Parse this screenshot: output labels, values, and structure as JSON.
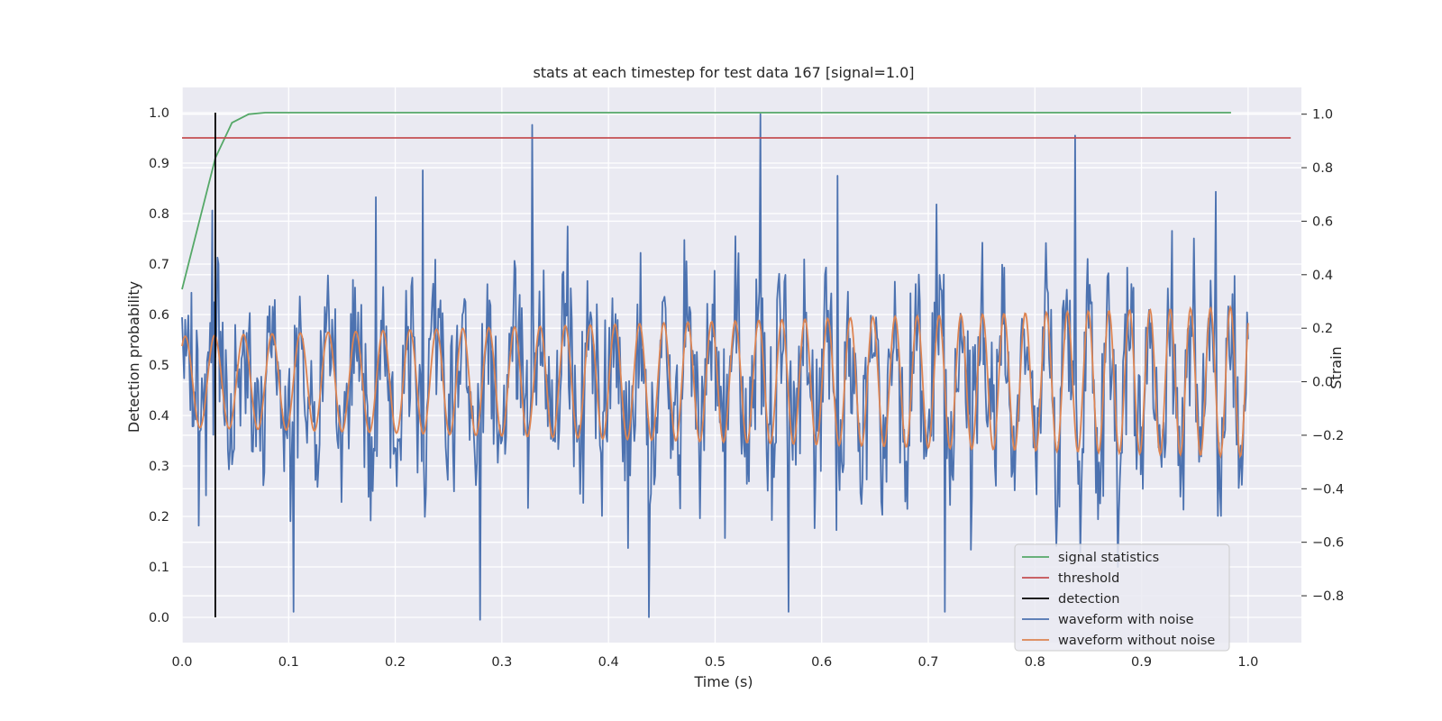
{
  "chart_data": {
    "type": "line",
    "title": "stats at each timestep for test data 167 [signal=1.0]",
    "xlabel": "Time (s)",
    "ylabel_left": "Detection probability",
    "ylabel_right": "Strain",
    "xlim": [
      0.0,
      1.05
    ],
    "ylim_left": [
      -0.05,
      1.05
    ],
    "ylim_right": [
      -0.975,
      1.1
    ],
    "x_ticks": [
      "0.0",
      "0.1",
      "0.2",
      "0.3",
      "0.4",
      "0.5",
      "0.6",
      "0.7",
      "0.8",
      "0.9",
      "1.0"
    ],
    "y_left_ticks": [
      "0.0",
      "0.1",
      "0.2",
      "0.3",
      "0.4",
      "0.5",
      "0.6",
      "0.7",
      "0.8",
      "0.9",
      "1.0"
    ],
    "y_right_ticks": [
      "−0.8",
      "−0.6",
      "−0.4",
      "−0.2",
      "0.0",
      "0.2",
      "0.4",
      "0.6",
      "0.8",
      "1.0"
    ],
    "grid": true,
    "legend_position": "lower-right",
    "colors": {
      "signal_statistics": "#55a868",
      "threshold": "#c44e52",
      "detection": "#000000",
      "waveform_noise": "#4c72b0",
      "waveform_clean": "#dd8452",
      "background": "#eaeaf2",
      "grid": "#ffffff"
    },
    "series": [
      {
        "name": "signal statistics",
        "axis": "left",
        "x": [
          0.0,
          0.0156,
          0.0312,
          0.0468,
          0.0625,
          0.0781,
          0.1,
          0.3,
          0.5,
          0.7,
          0.9,
          0.984
        ],
        "y": [
          0.65,
          0.78,
          0.91,
          0.98,
          0.997,
          1.0,
          1.0,
          1.0,
          1.0,
          1.0,
          1.0,
          1.0
        ]
      },
      {
        "name": "threshold",
        "axis": "left",
        "x": [
          0.0,
          1.04
        ],
        "y": [
          0.95,
          0.95
        ]
      },
      {
        "name": "detection",
        "axis": "left",
        "x": [
          0.0312,
          0.0312
        ],
        "y": [
          0.0,
          1.0
        ]
      },
      {
        "name": "waveform with noise",
        "axis": "right",
        "x_range": [
          0.0,
          1.0
        ],
        "peaks": [
          {
            "x": 0.028,
            "y": 0.64
          },
          {
            "x": 0.105,
            "y": -0.86
          },
          {
            "x": 0.182,
            "y": 0.69
          },
          {
            "x": 0.226,
            "y": 0.79
          },
          {
            "x": 0.28,
            "y": -0.89
          },
          {
            "x": 0.328,
            "y": 0.96
          },
          {
            "x": 0.438,
            "y": -0.88
          },
          {
            "x": 0.543,
            "y": 1.0
          },
          {
            "x": 0.569,
            "y": -0.86
          },
          {
            "x": 0.615,
            "y": 0.77
          },
          {
            "x": 0.716,
            "y": -0.86
          },
          {
            "x": 0.838,
            "y": 0.92
          },
          {
            "x": 0.97,
            "y": 0.71
          }
        ]
      },
      {
        "name": "waveform without noise",
        "axis": "right",
        "x_range": [
          0.0,
          1.0
        ],
        "amplitude_start": 0.17,
        "amplitude_end": 0.28
      }
    ]
  }
}
